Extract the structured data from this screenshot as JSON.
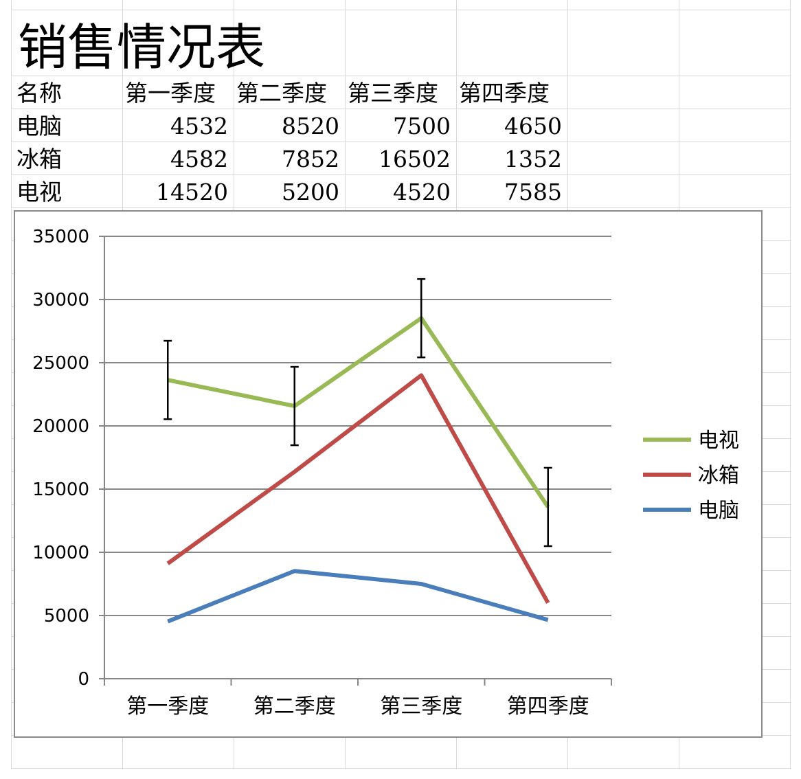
{
  "sheet": {
    "title": "销售情况表",
    "header": [
      "名称",
      "第一季度",
      "第二季度",
      "第三季度",
      "第四季度"
    ],
    "rows": [
      {
        "name": "电脑",
        "values": [
          "4532",
          "8520",
          "7500",
          "4650"
        ]
      },
      {
        "name": "冰箱",
        "values": [
          "4582",
          "7852",
          "16502",
          "1352"
        ]
      },
      {
        "name": "电视",
        "values": [
          "14520",
          "5200",
          "4520",
          "7585"
        ]
      }
    ]
  },
  "chart_data": {
    "type": "line",
    "stacked": true,
    "categories": [
      "第一季度",
      "第二季度",
      "第三季度",
      "第四季度"
    ],
    "series": [
      {
        "name": "电脑",
        "color": "#4a7ebb",
        "values": [
          4532,
          8520,
          7500,
          4650
        ],
        "cumulative": [
          4532,
          8520,
          7500,
          4650
        ]
      },
      {
        "name": "冰箱",
        "color": "#be4b48",
        "values": [
          4582,
          7852,
          16502,
          1352
        ],
        "cumulative": [
          9114,
          16372,
          24002,
          6002
        ]
      },
      {
        "name": "电视",
        "color": "#98b954",
        "values": [
          14520,
          5200,
          4520,
          7585
        ],
        "cumulative": [
          23634,
          21572,
          28522,
          13587
        ],
        "error_bar": 3100
      }
    ],
    "y_ticks": [
      "35000",
      "30000",
      "25000",
      "20000",
      "15000",
      "10000",
      "5000",
      "0"
    ],
    "ylim": [
      0,
      35000
    ],
    "grid": true,
    "legend_position": "right",
    "legend_order": [
      "电视",
      "冰箱",
      "电脑"
    ]
  }
}
